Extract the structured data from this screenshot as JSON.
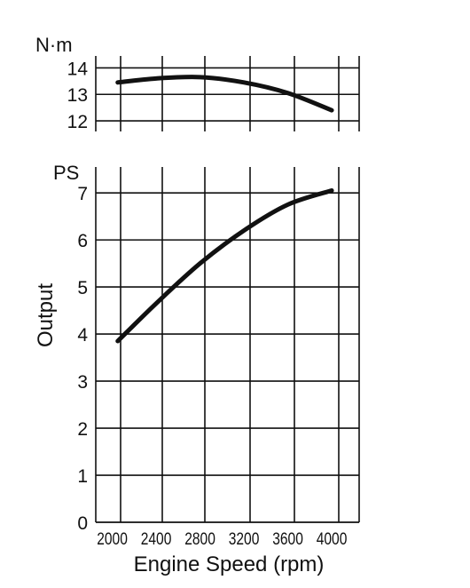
{
  "chart_data": [
    {
      "id": "torque",
      "type": "line",
      "unit": "N·m",
      "x": [
        2050,
        2400,
        2800,
        3200,
        3600,
        4000
      ],
      "series": [
        {
          "values": [
            13.45,
            13.6,
            13.65,
            13.45,
            13.05,
            12.4
          ]
        }
      ],
      "y_ticks": [
        "14",
        "13",
        "12"
      ],
      "ylim": [
        11.6,
        14.45
      ],
      "grid": true
    },
    {
      "id": "output",
      "type": "line",
      "unit": "PS",
      "ylabel": "Output",
      "xlabel": "Engine Speed (rpm)",
      "x": [
        2050,
        2400,
        2800,
        3200,
        3600,
        4000
      ],
      "series": [
        {
          "values": [
            3.85,
            4.65,
            5.5,
            6.2,
            6.75,
            7.05
          ]
        }
      ],
      "x_ticks": [
        "2000",
        "2400",
        "2800",
        "3200",
        "3600",
        "4000"
      ],
      "y_ticks": [
        "0",
        "1",
        "2",
        "3",
        "4",
        "5",
        "6",
        "7"
      ],
      "xlim": [
        1850,
        4250
      ],
      "ylim": [
        0,
        7.55
      ],
      "grid": true
    }
  ]
}
